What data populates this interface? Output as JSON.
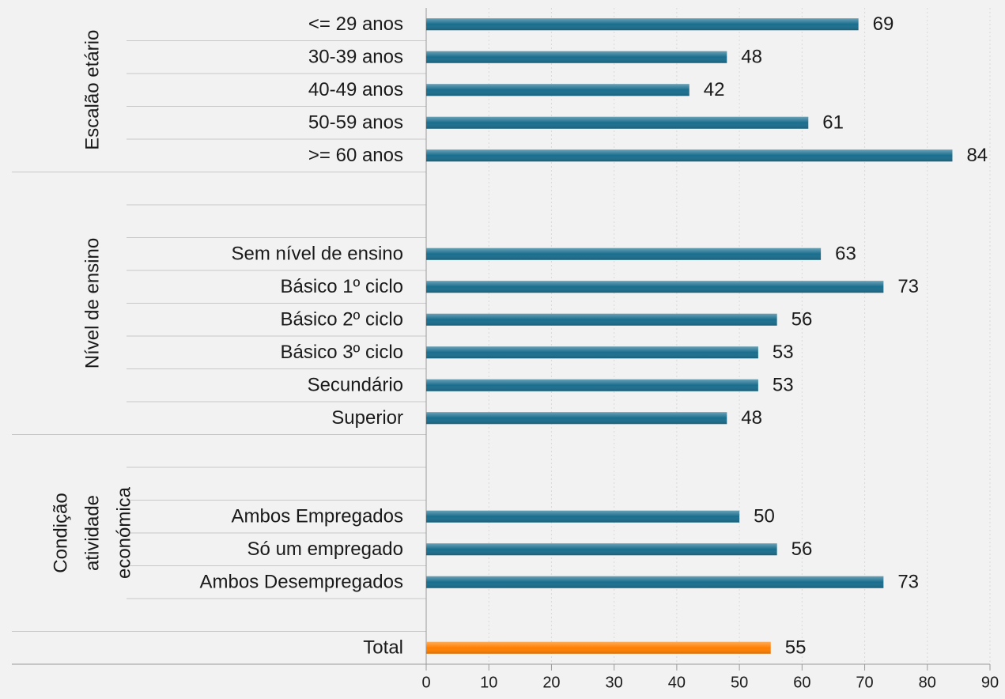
{
  "chart_data": {
    "type": "bar",
    "orientation": "horizontal",
    "categories": [
      "<= 29 anos",
      "30-39 anos",
      "40-49 anos",
      "50-59 anos",
      ">= 60 anos",
      null,
      null,
      "Sem nível de ensino",
      "Básico 1º ciclo",
      "Básico 2º ciclo",
      "Básico 3º ciclo",
      "Secundário",
      "Superior",
      null,
      null,
      "Ambos Empregados",
      "Só um empregado",
      "Ambos Desempregados",
      null,
      "Total"
    ],
    "values": [
      69,
      48,
      42,
      61,
      84,
      null,
      null,
      63,
      73,
      56,
      53,
      53,
      48,
      null,
      null,
      50,
      56,
      73,
      null,
      55
    ],
    "colors": [
      "#1a6e8e",
      "#1a6e8e",
      "#1a6e8e",
      "#1a6e8e",
      "#1a6e8e",
      "#1a6e8e",
      "#1a6e8e",
      "#1a6e8e",
      "#1a6e8e",
      "#1a6e8e",
      "#1a6e8e",
      "#1a6e8e",
      "#1a6e8e",
      "#1a6e8e",
      "#1a6e8e",
      "#1a6e8e",
      "#1a6e8e",
      "#1a6e8e",
      "#1a6e8e",
      "#ff7f00"
    ],
    "groups": [
      {
        "label": [
          "Escalão etário"
        ],
        "count": 5
      },
      {
        "label": [
          "Nível de ensino"
        ],
        "count": 8
      },
      {
        "label": [
          "Condição",
          "atividade",
          "económica"
        ],
        "count": 6
      }
    ],
    "xlim": [
      0,
      90
    ],
    "xticks": [
      0,
      10,
      20,
      30,
      40,
      50,
      60,
      70,
      80,
      90
    ],
    "grid": true
  }
}
